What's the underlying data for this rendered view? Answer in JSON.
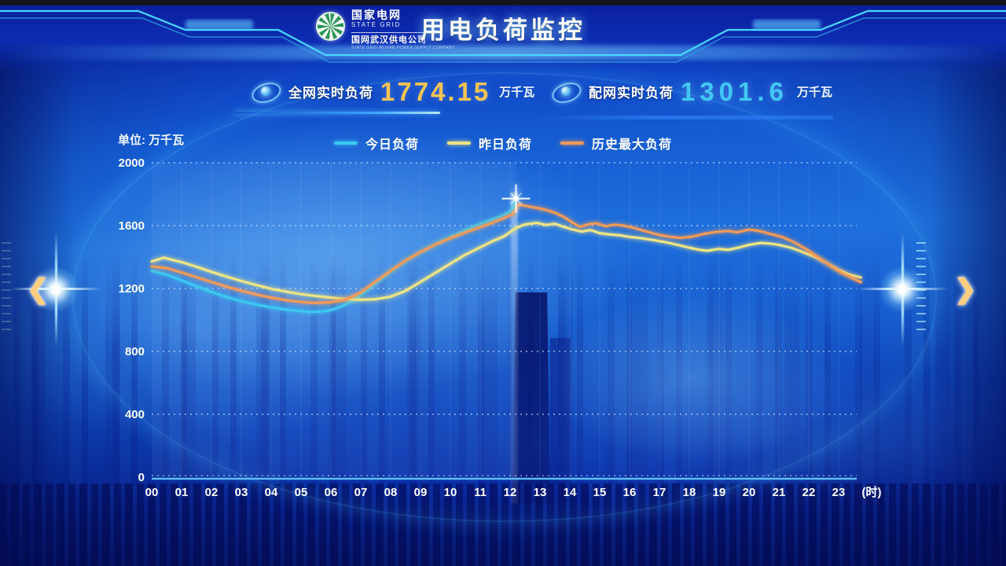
{
  "header": {
    "title": "用电负荷监控",
    "logo": {
      "org_cn": "国家电网",
      "org_en": "STATE GRID",
      "company_cn": "国网武汉供电公司",
      "company_en": "STATE GRID WUHAN POWER SUPPLY COMPANY"
    }
  },
  "stats": [
    {
      "label": "全网实时负荷",
      "value": "1774.15",
      "unit": "万千瓦",
      "color": "#f6c453"
    },
    {
      "label": "配网实时负荷",
      "value": "1301.6",
      "unit": "万千瓦",
      "color": "#41c8f5"
    }
  ],
  "nav": {
    "prev_label": "❮",
    "next_label": "❯"
  },
  "chart_data": {
    "type": "line",
    "title": "用电负荷监控",
    "unit_label": "单位: 万千瓦",
    "xlabel": "",
    "ylabel": "万千瓦",
    "x_axis_suffix": "(时)",
    "x_ticks": [
      "00",
      "01",
      "02",
      "03",
      "04",
      "05",
      "06",
      "07",
      "08",
      "09",
      "10",
      "11",
      "12",
      "13",
      "14",
      "15",
      "16",
      "17",
      "18",
      "19",
      "20",
      "21",
      "22",
      "23"
    ],
    "y_ticks": [
      0,
      400,
      800,
      1200,
      1600,
      2000
    ],
    "ylim": [
      0,
      2000
    ],
    "xlim": [
      0,
      24
    ],
    "grid": "dotted-horizontal",
    "legend_position": "top-center",
    "end_marker": {
      "type": "star",
      "series_index": 0
    },
    "series": [
      {
        "name": "今日负荷",
        "color": "#3cc8f0",
        "points": [
          [
            0,
            1312
          ],
          [
            0.5,
            1288
          ],
          [
            1,
            1252
          ],
          [
            1.5,
            1214
          ],
          [
            2,
            1178
          ],
          [
            2.5,
            1146
          ],
          [
            3,
            1120
          ],
          [
            3.5,
            1098
          ],
          [
            4,
            1080
          ],
          [
            4.5,
            1066
          ],
          [
            5,
            1056
          ],
          [
            5.3,
            1050
          ],
          [
            5.7,
            1054
          ],
          [
            6,
            1062
          ],
          [
            6.4,
            1090
          ],
          [
            6.8,
            1130
          ],
          [
            7.2,
            1185
          ],
          [
            7.6,
            1248
          ],
          [
            8,
            1308
          ],
          [
            8.4,
            1362
          ],
          [
            8.8,
            1410
          ],
          [
            9.2,
            1452
          ],
          [
            9.6,
            1492
          ],
          [
            10,
            1528
          ],
          [
            10.4,
            1562
          ],
          [
            10.8,
            1596
          ],
          [
            11.2,
            1625
          ],
          [
            11.5,
            1645
          ],
          [
            11.8,
            1668
          ],
          [
            12,
            1692
          ],
          [
            12.1,
            1712
          ],
          [
            12.2,
            1772
          ]
        ]
      },
      {
        "name": "昨日负荷",
        "color": "#ece484",
        "points": [
          [
            0,
            1372
          ],
          [
            0.4,
            1396
          ],
          [
            1,
            1368
          ],
          [
            1.5,
            1338
          ],
          [
            2,
            1306
          ],
          [
            2.5,
            1276
          ],
          [
            3,
            1248
          ],
          [
            3.5,
            1222
          ],
          [
            4,
            1198
          ],
          [
            4.5,
            1180
          ],
          [
            5,
            1164
          ],
          [
            5.5,
            1152
          ],
          [
            6,
            1142
          ],
          [
            6.5,
            1133
          ],
          [
            7,
            1128
          ],
          [
            7.5,
            1132
          ],
          [
            8,
            1148
          ],
          [
            8.5,
            1185
          ],
          [
            9,
            1242
          ],
          [
            9.5,
            1300
          ],
          [
            10,
            1358
          ],
          [
            10.5,
            1415
          ],
          [
            11,
            1462
          ],
          [
            11.4,
            1500
          ],
          [
            11.8,
            1532
          ],
          [
            12.2,
            1585
          ],
          [
            12.5,
            1608
          ],
          [
            12.9,
            1618
          ],
          [
            13.2,
            1604
          ],
          [
            13.5,
            1612
          ],
          [
            13.8,
            1592
          ],
          [
            14.1,
            1575
          ],
          [
            14.4,
            1562
          ],
          [
            14.7,
            1572
          ],
          [
            15,
            1552
          ],
          [
            15.3,
            1545
          ],
          [
            15.7,
            1538
          ],
          [
            16,
            1528
          ],
          [
            16.4,
            1520
          ],
          [
            16.8,
            1508
          ],
          [
            17.2,
            1495
          ],
          [
            17.6,
            1478
          ],
          [
            18,
            1460
          ],
          [
            18.3,
            1448
          ],
          [
            18.6,
            1440
          ],
          [
            19,
            1452
          ],
          [
            19.3,
            1446
          ],
          [
            19.7,
            1462
          ],
          [
            20,
            1478
          ],
          [
            20.4,
            1490
          ],
          [
            20.7,
            1486
          ],
          [
            21,
            1478
          ],
          [
            21.4,
            1460
          ],
          [
            21.8,
            1432
          ],
          [
            22.2,
            1402
          ],
          [
            22.6,
            1362
          ],
          [
            23,
            1318
          ],
          [
            23.4,
            1286
          ],
          [
            23.75,
            1270
          ]
        ]
      },
      {
        "name": "历史最大负荷",
        "color": "#f09a58",
        "points": [
          [
            0,
            1340
          ],
          [
            0.5,
            1330
          ],
          [
            1,
            1302
          ],
          [
            1.5,
            1272
          ],
          [
            2,
            1242
          ],
          [
            2.5,
            1212
          ],
          [
            3,
            1186
          ],
          [
            3.5,
            1162
          ],
          [
            4,
            1142
          ],
          [
            4.5,
            1126
          ],
          [
            5,
            1114
          ],
          [
            5.5,
            1108
          ],
          [
            6,
            1112
          ],
          [
            6.5,
            1130
          ],
          [
            7,
            1175
          ],
          [
            7.5,
            1245
          ],
          [
            8,
            1312
          ],
          [
            8.5,
            1378
          ],
          [
            9,
            1432
          ],
          [
            9.5,
            1480
          ],
          [
            10,
            1520
          ],
          [
            10.5,
            1556
          ],
          [
            11,
            1590
          ],
          [
            11.4,
            1618
          ],
          [
            11.8,
            1648
          ],
          [
            12.1,
            1675
          ],
          [
            12.3,
            1735
          ],
          [
            12.6,
            1722
          ],
          [
            12.9,
            1712
          ],
          [
            13.2,
            1700
          ],
          [
            13.5,
            1682
          ],
          [
            13.8,
            1655
          ],
          [
            14.1,
            1618
          ],
          [
            14.35,
            1592
          ],
          [
            14.6,
            1608
          ],
          [
            14.9,
            1615
          ],
          [
            15.2,
            1596
          ],
          [
            15.5,
            1606
          ],
          [
            15.8,
            1600
          ],
          [
            16.1,
            1588
          ],
          [
            16.5,
            1566
          ],
          [
            16.9,
            1545
          ],
          [
            17.3,
            1530
          ],
          [
            17.7,
            1522
          ],
          [
            18.1,
            1530
          ],
          [
            18.5,
            1548
          ],
          [
            18.9,
            1560
          ],
          [
            19.3,
            1566
          ],
          [
            19.6,
            1558
          ],
          [
            20,
            1574
          ],
          [
            20.3,
            1568
          ],
          [
            20.7,
            1548
          ],
          [
            21.1,
            1528
          ],
          [
            21.5,
            1495
          ],
          [
            21.9,
            1452
          ],
          [
            22.3,
            1400
          ],
          [
            22.7,
            1348
          ],
          [
            23.1,
            1300
          ],
          [
            23.5,
            1262
          ],
          [
            23.75,
            1240
          ]
        ]
      }
    ]
  }
}
